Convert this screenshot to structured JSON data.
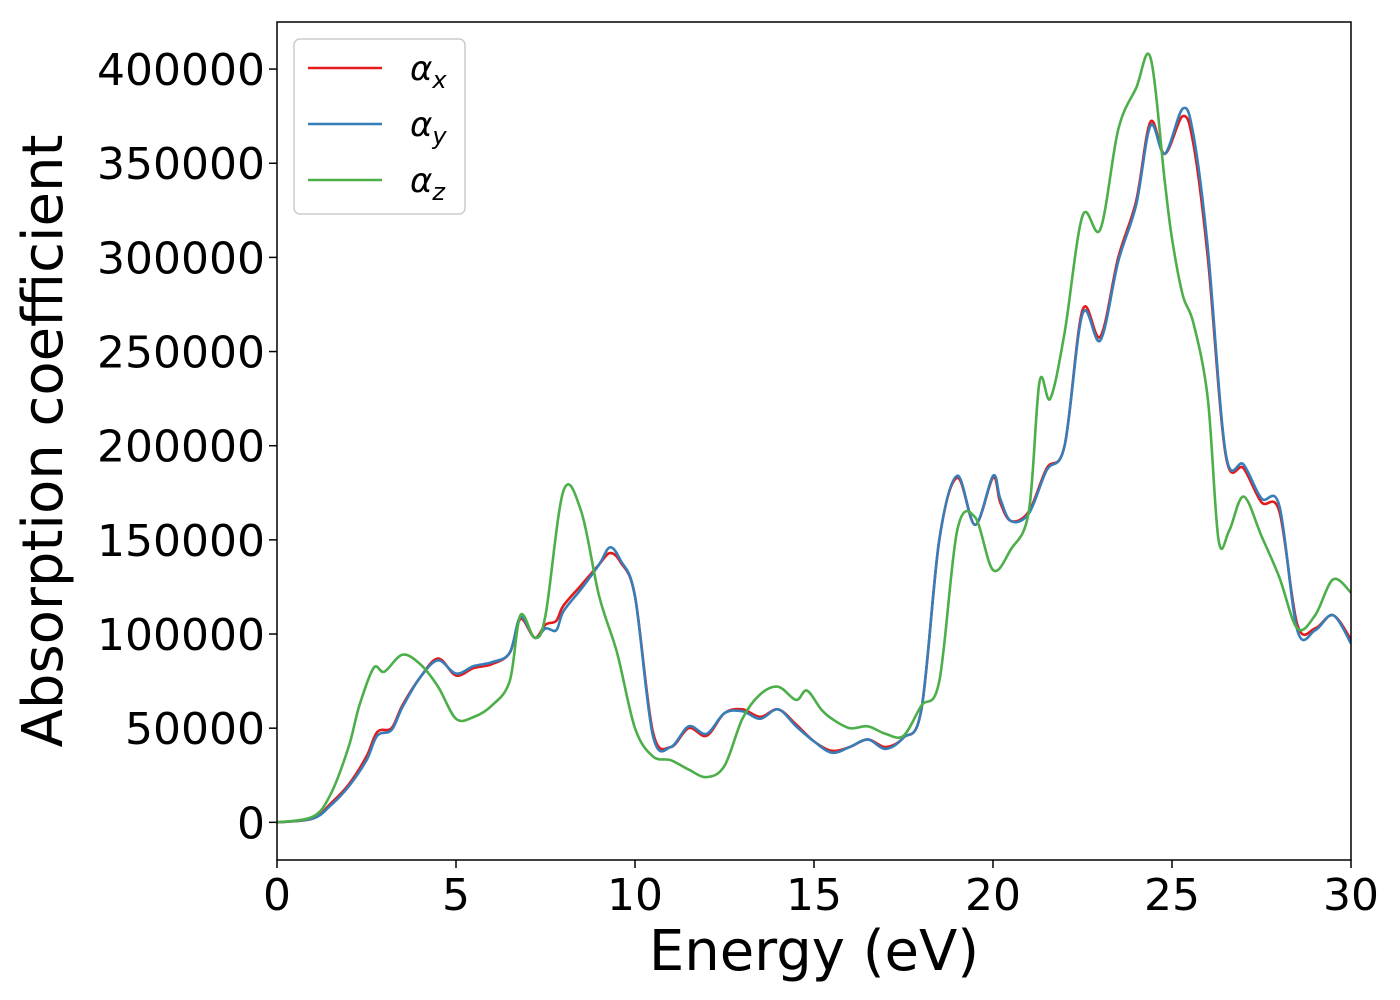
{
  "chart_data": {
    "type": "line",
    "xlabel": "Energy (eV)",
    "ylabel": "Absorption coefficient",
    "xlim": [
      0,
      30
    ],
    "ylim": [
      -20000,
      425000
    ],
    "xticks": [
      0,
      5,
      10,
      15,
      20,
      25,
      30
    ],
    "xtick_labels": [
      "0",
      "5",
      "10",
      "15",
      "20",
      "25",
      "30"
    ],
    "yticks": [
      0,
      50000,
      100000,
      150000,
      200000,
      250000,
      300000,
      350000,
      400000
    ],
    "ytick_labels": [
      "0",
      "50000",
      "100000",
      "150000",
      "200000",
      "250000",
      "300000",
      "350000",
      "400000"
    ],
    "grid": false,
    "legend_position": "top-left",
    "series": [
      {
        "name": "α",
        "subscript": "x",
        "color": "#e41a1c",
        "x": [
          0,
          1,
          1.5,
          2,
          2.5,
          2.8,
          3.2,
          3.5,
          4,
          4.5,
          5,
          5.5,
          6,
          6.5,
          6.8,
          7.2,
          7.5,
          7.8,
          8,
          8.5,
          9,
          9.3,
          9.6,
          10,
          10.5,
          11,
          11.5,
          12,
          12.5,
          13,
          13.5,
          14,
          14.5,
          15,
          15.5,
          16,
          16.5,
          17,
          17.5,
          18,
          18.5,
          19,
          19.5,
          20,
          20.2,
          20.5,
          21,
          21.5,
          22,
          22.5,
          23,
          23.5,
          24,
          24.4,
          24.8,
          25.3,
          25.6,
          26,
          26.5,
          27,
          27.5,
          28,
          28.5,
          29,
          29.5,
          30
        ],
        "values": [
          0,
          2000,
          10000,
          20000,
          35000,
          48000,
          50000,
          62000,
          77000,
          87000,
          78000,
          82000,
          84000,
          90000,
          108000,
          98000,
          105000,
          107000,
          115000,
          126000,
          137000,
          143000,
          138000,
          120000,
          48000,
          40000,
          50000,
          46000,
          58000,
          60000,
          56000,
          60000,
          52000,
          43000,
          38000,
          40000,
          44000,
          40000,
          45000,
          60000,
          150000,
          183000,
          158000,
          183000,
          170000,
          160000,
          165000,
          188000,
          200000,
          272000,
          258000,
          300000,
          330000,
          372000,
          355000,
          375000,
          360000,
          300000,
          195000,
          188000,
          170000,
          165000,
          105000,
          103000,
          110000,
          97000
        ]
      },
      {
        "name": "α",
        "subscript": "y",
        "color": "#377eb8",
        "x": [
          0,
          1,
          1.5,
          2,
          2.5,
          2.8,
          3.2,
          3.5,
          4,
          4.5,
          5,
          5.5,
          6,
          6.5,
          6.8,
          7.2,
          7.5,
          7.8,
          8,
          8.5,
          9,
          9.3,
          9.6,
          10,
          10.5,
          11,
          11.5,
          12,
          12.5,
          13,
          13.5,
          14,
          14.5,
          15,
          15.5,
          16,
          16.5,
          17,
          17.5,
          18,
          18.5,
          19,
          19.5,
          20,
          20.2,
          20.5,
          21,
          21.5,
          22,
          22.5,
          23,
          23.5,
          24,
          24.4,
          24.8,
          25.3,
          25.6,
          26,
          26.5,
          27,
          27.5,
          28,
          28.5,
          29,
          29.5,
          30
        ],
        "values": [
          0,
          2000,
          9000,
          19000,
          33000,
          46000,
          49000,
          61000,
          77000,
          86000,
          79000,
          83000,
          85000,
          90000,
          109000,
          98000,
          103000,
          102000,
          112000,
          124000,
          137000,
          146000,
          139000,
          120000,
          46000,
          40000,
          51000,
          47000,
          58000,
          59000,
          55000,
          60000,
          51000,
          43000,
          37000,
          40000,
          44000,
          39000,
          45000,
          60000,
          150000,
          184000,
          158000,
          184000,
          172000,
          160000,
          164000,
          187000,
          200000,
          270000,
          256000,
          298000,
          328000,
          370000,
          355000,
          379000,
          365000,
          305000,
          196000,
          190000,
          172000,
          168000,
          102000,
          102000,
          110000,
          95000
        ]
      },
      {
        "name": "α",
        "subscript": "z",
        "color": "#4daf4a",
        "x": [
          0,
          1,
          1.5,
          2,
          2.3,
          2.7,
          3,
          3.5,
          4,
          4.5,
          5,
          5.5,
          6,
          6.5,
          6.8,
          7.2,
          7.5,
          8,
          8.5,
          9,
          9.5,
          10,
          10.5,
          11,
          11.5,
          12,
          12.5,
          13,
          13.5,
          14,
          14.5,
          14.8,
          15.2,
          15.5,
          16,
          16.5,
          17,
          17.5,
          18,
          18.5,
          19,
          19.5,
          20,
          20.5,
          21,
          21.3,
          21.6,
          22,
          22.5,
          23,
          23.5,
          24,
          24.4,
          24.8,
          25,
          25.3,
          25.6,
          26,
          26.3,
          26.6,
          27,
          27.5,
          28,
          28.5,
          29,
          29.5,
          30
        ],
        "values": [
          0,
          3000,
          15000,
          40000,
          62000,
          82000,
          80000,
          89000,
          84000,
          72000,
          55000,
          56000,
          62000,
          75000,
          110000,
          98000,
          110000,
          176000,
          165000,
          120000,
          90000,
          50000,
          35000,
          33000,
          28000,
          24000,
          30000,
          55000,
          68000,
          72000,
          65000,
          70000,
          60000,
          55000,
          50000,
          51000,
          47000,
          46000,
          62000,
          75000,
          155000,
          162000,
          134000,
          145000,
          165000,
          234000,
          225000,
          260000,
          322000,
          315000,
          368000,
          390000,
          406000,
          340000,
          310000,
          280000,
          265000,
          225000,
          150000,
          155000,
          173000,
          152000,
          130000,
          103000,
          110000,
          129000,
          122000
        ]
      }
    ]
  }
}
